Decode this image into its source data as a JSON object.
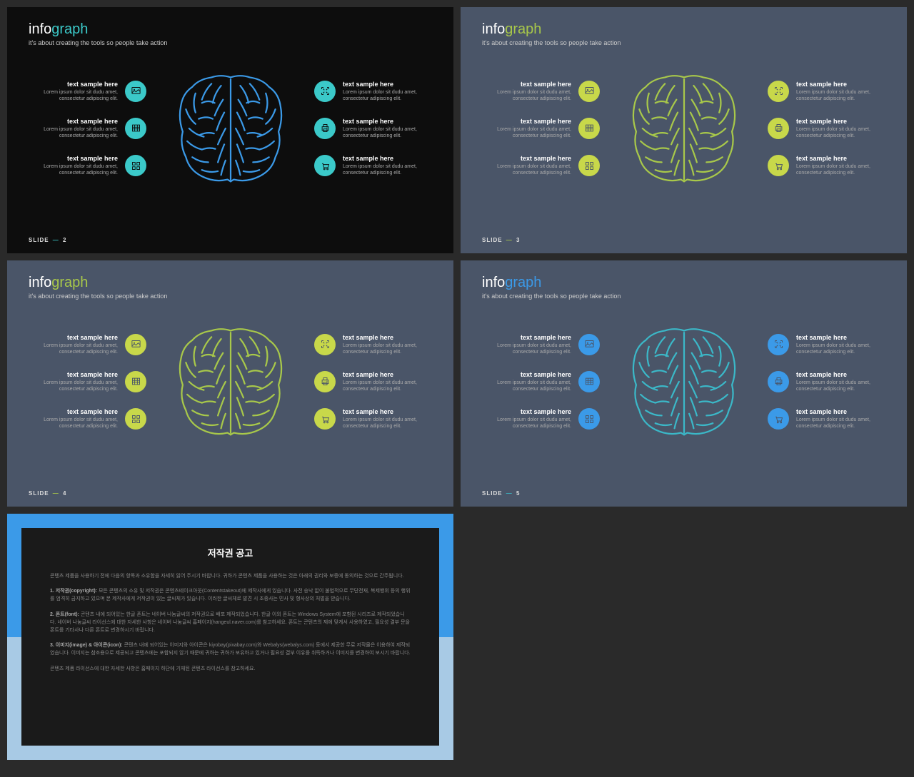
{
  "title_info": "info",
  "title_graph": "graph",
  "subtitle": "it's about creating the tools so people take action",
  "slide_label": "SLIDE",
  "item_title": "text sample here",
  "item_desc": "Lorem ipsum dolor sit dudu amet, consectetur adipiscing elit.",
  "slides": [
    {
      "num": "2",
      "bg": "#0d0d0d",
      "info_color": "#ffffff",
      "graph_color": "#3bc9c9",
      "icon_bg": "#3bc9c9",
      "icon_fg": "#0d0d0d",
      "brain_color": "#3b9ae8",
      "dash_color": "#3bc9c9"
    },
    {
      "num": "3",
      "bg": "#4a5568",
      "info_color": "#ffffff",
      "graph_color": "#a8c84a",
      "icon_bg": "#c8d84a",
      "icon_fg": "#4a5568",
      "brain_color": "#a8c84a",
      "dash_color": "#a8c84a"
    },
    {
      "num": "4",
      "bg": "#4a5568",
      "info_color": "#ffffff",
      "graph_color": "#a8c84a",
      "icon_bg": "#c8d84a",
      "icon_fg": "#4a5568",
      "brain_color": "#a8c84a",
      "dash_color": "#a8c84a"
    },
    {
      "num": "5",
      "bg": "#4a5568",
      "info_color": "#ffffff",
      "graph_color": "#3b9ae8",
      "icon_bg": "#3b9ae8",
      "icon_fg": "#4a5568",
      "brain_color": "#3bb8c8",
      "dash_color": "#3bb8c8"
    }
  ],
  "copyright": {
    "title": "저작권 공고",
    "p1": "콘텐츠 제품을 사용하기 전에 다음의 항목과 소유함을 자세히 읽어 주시기 바랍니다. 귀하가 콘텐츠 제품을 사용하는 것은 아래의 권리와 보증에 동의하는 것으로 간주됩니다.",
    "p2_label": "1. 저작권(copyright):",
    "p2": "모든 콘텐츠의 소유 및 저작권은 콘텐츠테이크아웃(Contentstakeout)에 제작사에게 있습니다. 사전 승낙 없이 불법적으로 무단전재, 복제행위 등의 행위를 엄격히 금지하고 있으며 본 제작사에게 저작권이 있는 글씨체가 있습니다. 이러한 글씨체로 발견 시 조종사는 민사 및 형사상의 처벌을 받습니다.",
    "p3_label": "2. 폰트(font):",
    "p3": "콘텐츠 내에 되어있는 한글 폰트는 네이버 나눔글씨의 저작권으로 배포 제작되었습니다. 한글 이외 폰트는 Windows System에 포함된 시리즈로 제작되었습니다. 네이버 나눔글씨 라이선스에 대한 자세한 사항은 네이버 나눔글씨 홈페이지(hangeul.naver.com)를 참고하세요. 폰트는 콘텐츠의 제에 맞게서 사용하였고, 필요성 결부 문을 폰트를 기타사나 다른 폰트로 변경하시기 바랍니다.",
    "p4_label": "3. 이미지(image) & 아이콘(icon):",
    "p4": "콘텐츠 내에 되어있는 이미지와 아이콘은 kiyobay(pixabay.com)와 Webalys(webalys.com) 등에서 제공한 무료 저작물은 이용하여 제작되었습니다. 이미지는 참조용으로 제공되고 콘텐츠에는 포함되지 않기 때문에 귀하는 귀하가 보유하고 있거나 필요성 결부 이유를 취득하거나 이미지를 변경하여 보시기 바랍니다.",
    "p5": "콘텐츠 제품 라이선스에 대한 자세한 사항은 홈페이지 하단에 기재된 콘텐츠 라이선스를 참고하세요."
  }
}
